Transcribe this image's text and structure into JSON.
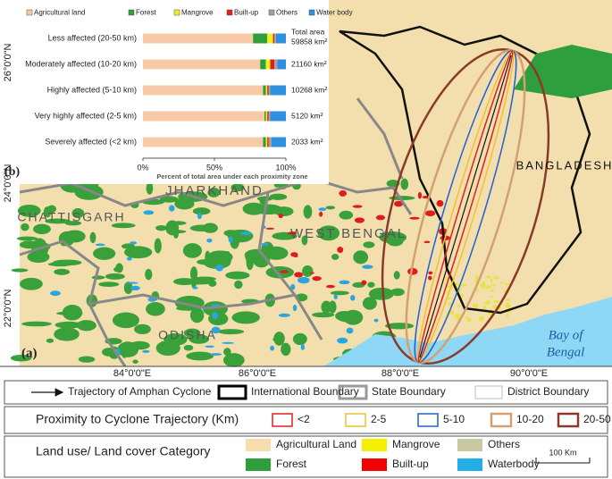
{
  "chart_data": {
    "type": "stacked-barh",
    "panel_label": "(b)",
    "categories": [
      "Less affected (20-50 km)",
      "Moderately affected (10-20 km)",
      "Highly affected (5-10 km)",
      "Very highly affected (2-5 km)",
      "Severely affected (<2 km)"
    ],
    "series": [
      {
        "name": "Agricultural land",
        "color": "#f7c9a6",
        "values": [
          77,
          82,
          84,
          85,
          84
        ]
      },
      {
        "name": "Forest",
        "color": "#2f9e3c",
        "values": [
          10,
          4,
          2,
          1,
          2
        ]
      },
      {
        "name": "Mangrove",
        "color": "#f2ee1e",
        "values": [
          4,
          3,
          1,
          1,
          1
        ]
      },
      {
        "name": "Built-up",
        "color": "#e11d1d",
        "values": [
          1,
          3,
          1,
          1,
          1
        ]
      },
      {
        "name": "Others",
        "color": "#a2a29b",
        "values": [
          1,
          2,
          1,
          1,
          2
        ]
      },
      {
        "name": "Water body",
        "color": "#2f8fe0",
        "values": [
          7,
          6,
          11,
          11,
          10
        ]
      }
    ],
    "total_area_header": "Total area",
    "total_area_labels": [
      "59858 km²",
      "21160 km²",
      "10268 km²",
      "5120 km²",
      "2033 km²"
    ],
    "xlabel": "Percent of total area under each proximity zone",
    "xlim": [
      0,
      100
    ],
    "xticks": [
      {
        "value": 0,
        "label": "0%"
      },
      {
        "value": 50,
        "label": "50%"
      },
      {
        "value": 100,
        "label": "100%"
      }
    ]
  },
  "map": {
    "panel_label": "(a)",
    "lat_labels": [
      "26°0'0\"N",
      "24°0'0\"N",
      "22°0'0\"N"
    ],
    "lon_labels": [
      "84°0'0\"E",
      "86°0'0\"E",
      "88°0'0\"E",
      "90°0'0\"E"
    ],
    "places": [
      "JHARKHAND",
      "WEST BENGAL",
      "BANGLADESH",
      "CHATTISGARH",
      "ODISHA",
      "Bay of",
      "Bengal"
    ]
  },
  "legend": {
    "trajectory": "Trajectory of Amphan Cyclone",
    "international": "International Boundary",
    "state": "State Boundary",
    "district": "District Boundary",
    "proximity_title": "Proximity to Cyclone Trajectory (Km)",
    "proximity": [
      "<2",
      "2-5",
      "5-10",
      "10-20",
      "20-50"
    ],
    "lulc_title": "Land use/ Land cover Category",
    "lulc": [
      "Agricultural Land",
      "Mangrove",
      "Others",
      "Forest",
      "Built-up",
      "Waterbody"
    ],
    "scale": "100 Km"
  }
}
